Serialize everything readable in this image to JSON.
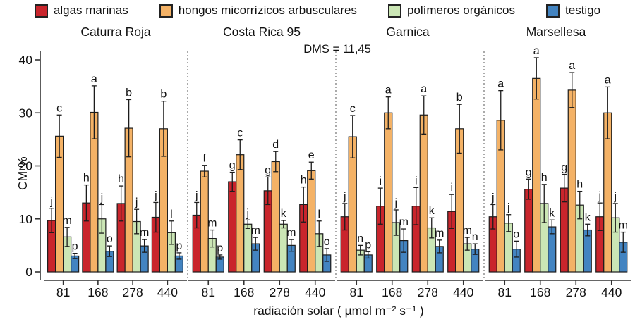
{
  "chart_data": {
    "type": "bar",
    "dms_label": "DMS = 11,45",
    "ylabel": "CM %",
    "xlabel": "radiación solar ( µmol m⁻² s⁻¹ )",
    "ylim": [
      0,
      42
    ],
    "yticks": [
      "0",
      "10",
      "20",
      "30",
      "40"
    ],
    "x_categories": [
      "81",
      "168",
      "278",
      "440"
    ],
    "grid": false,
    "legend_position": "top",
    "series": [
      {
        "name": "algas marinas",
        "color": "#c9252c"
      },
      {
        "name": "hongos micorrízicos arbusculares",
        "color": "#f4b266"
      },
      {
        "name": "polímeros orgánicos",
        "color": "#cbe6b5"
      },
      {
        "name": "testigo",
        "color": "#4384c1"
      }
    ],
    "panels": [
      {
        "title": "Caturra Roja",
        "series": [
          {
            "name": "algas marinas",
            "values": [
              9.7,
              13.0,
              12.9,
              10.3
            ],
            "errors": [
              2.3,
              3.4,
              3.3,
              2.8
            ],
            "letters": [
              "j",
              "h",
              "h",
              "j"
            ]
          },
          {
            "name": "hongos micorrízicos arbusculares",
            "values": [
              25.6,
              30.1,
              27.1,
              27.0
            ],
            "errors": [
              4.0,
              5.0,
              5.4,
              5.2
            ],
            "letters": [
              "c",
              "a",
              "b",
              "b"
            ]
          },
          {
            "name": "polímeros orgánicos",
            "values": [
              6.6,
              10.0,
              9.5,
              7.4
            ],
            "errors": [
              1.8,
              2.7,
              2.3,
              2.2
            ],
            "letters": [
              "m",
              "j",
              "j",
              "l"
            ]
          },
          {
            "name": "testigo",
            "values": [
              3.0,
              3.9,
              4.9,
              3.0
            ],
            "errors": [
              0.5,
              1.0,
              1.2,
              0.6
            ],
            "letters": [
              "p",
              "o",
              "m",
              "p"
            ]
          }
        ]
      },
      {
        "title": "Costa Rica 95",
        "series": [
          {
            "name": "algas marinas",
            "values": [
              10.7,
              17.0,
              15.3,
              12.7
            ],
            "errors": [
              2.4,
              1.8,
              2.6,
              3.3
            ],
            "letters": [
              "j",
              "g",
              "g",
              "h"
            ]
          },
          {
            "name": "hongos micorrízicos arbusculares",
            "values": [
              19.0,
              22.1,
              20.8,
              19.1
            ],
            "errors": [
              1.1,
              2.8,
              1.9,
              1.6
            ],
            "letters": [
              "f",
              "c",
              "d",
              "e"
            ]
          },
          {
            "name": "polímeros orgánicos",
            "values": [
              6.3,
              9.0,
              9.0,
              7.2
            ],
            "errors": [
              1.6,
              0.8,
              0.7,
              2.4
            ],
            "letters": [
              "m",
              "j",
              "k",
              "l"
            ]
          },
          {
            "name": "testigo",
            "values": [
              2.8,
              5.3,
              5.0,
              3.2
            ],
            "errors": [
              0.4,
              1.2,
              1.1,
              1.2
            ],
            "letters": [
              "p",
              "m",
              "m",
              "o"
            ]
          }
        ]
      },
      {
        "title": "Garnica",
        "series": [
          {
            "name": "algas marinas",
            "values": [
              10.4,
              12.4,
              12.4,
              11.4
            ],
            "errors": [
              2.5,
              3.4,
              3.5,
              3.2
            ],
            "letters": [
              "j",
              "i",
              "i",
              "i"
            ]
          },
          {
            "name": "hongos micorrízicos arbusculares",
            "values": [
              25.5,
              30.0,
              29.6,
              27.0
            ],
            "errors": [
              4.0,
              3.0,
              3.6,
              4.6
            ],
            "letters": [
              "c",
              "a",
              "a",
              "b"
            ]
          },
          {
            "name": "polímeros orgánicos",
            "values": [
              4.1,
              9.3,
              8.3,
              5.3
            ],
            "errors": [
              0.9,
              2.4,
              1.9,
              1.2
            ],
            "letters": [
              "n",
              "j",
              "k",
              "m"
            ]
          },
          {
            "name": "testigo",
            "values": [
              3.2,
              5.9,
              4.8,
              4.3
            ],
            "errors": [
              0.6,
              2.2,
              1.2,
              1.0
            ],
            "letters": [
              "p",
              "m",
              "m",
              "n"
            ]
          }
        ]
      },
      {
        "title": "Marsellesa",
        "series": [
          {
            "name": "algas marinas",
            "values": [
              10.4,
              15.6,
              15.8,
              10.4
            ],
            "errors": [
              2.3,
              1.9,
              2.6,
              2.6
            ],
            "letters": [
              "j",
              "g",
              "g",
              "j"
            ]
          },
          {
            "name": "hongos micorrízicos arbusculares",
            "values": [
              28.6,
              36.5,
              34.3,
              30.0
            ],
            "errors": [
              5.6,
              3.9,
              3.3,
              4.9
            ],
            "letters": [
              "a",
              "a",
              "a",
              "a"
            ]
          },
          {
            "name": "polímeros orgánicos",
            "values": [
              9.2,
              12.9,
              12.6,
              10.2
            ],
            "errors": [
              1.6,
              3.6,
              2.6,
              2.7
            ],
            "letters": [
              "j",
              "h",
              "h",
              "j"
            ]
          },
          {
            "name": "testigo",
            "values": [
              4.3,
              8.5,
              7.9,
              5.6
            ],
            "errors": [
              1.5,
              1.3,
              1.1,
              1.9
            ],
            "letters": [
              "o",
              "k",
              "k",
              "m"
            ]
          }
        ]
      }
    ]
  }
}
